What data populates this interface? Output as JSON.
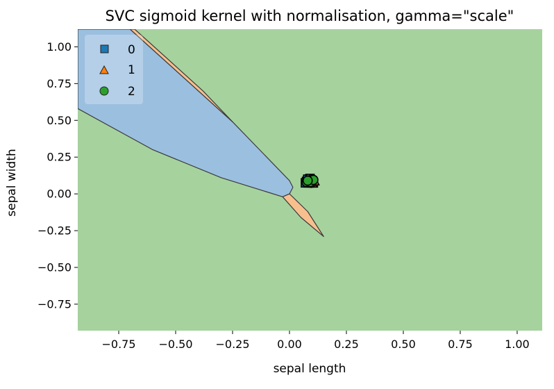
{
  "chart_data": {
    "type": "scatter",
    "title": "SVC sigmoid kernel with normalisation, gamma=\"scale\"",
    "xlabel": "sepal length",
    "ylabel": "sepal width",
    "xlim": [
      -0.93,
      1.11
    ],
    "ylim": [
      -0.93,
      1.12
    ],
    "x_ticks": [
      "−0.75",
      "−0.50",
      "−0.25",
      "0.00",
      "0.25",
      "0.50",
      "0.75",
      "1.00"
    ],
    "x_tick_values": [
      -0.75,
      -0.5,
      -0.25,
      0.0,
      0.25,
      0.5,
      0.75,
      1.0
    ],
    "y_ticks": [
      "1.00",
      "0.75",
      "0.50",
      "0.25",
      "0.00",
      "−0.25",
      "−0.50",
      "−0.75"
    ],
    "y_tick_values": [
      1.0,
      0.75,
      0.5,
      0.25,
      0.0,
      -0.25,
      -0.5,
      -0.75
    ],
    "grid": false,
    "legend_placement": "top-left",
    "colors": {
      "class_0": "#1f77b4",
      "class_1": "#ff7f0e",
      "class_2": "#2ca02c",
      "region_0": "#9bbfdf",
      "region_1": "#f8bf8e",
      "region_2": "#a6d29e",
      "boundary": "#3a3a3a"
    },
    "legend": [
      {
        "label": "0",
        "marker": "square",
        "color": "#1f77b4"
      },
      {
        "label": "1",
        "marker": "triangle",
        "color": "#ff7f0e"
      },
      {
        "label": "2",
        "marker": "circle",
        "color": "#2ca02c"
      }
    ],
    "decision_regions": [
      {
        "class": "0",
        "polygon": [
          [
            -0.93,
            1.12
          ],
          [
            -0.7,
            1.12
          ],
          [
            -0.45,
            0.77
          ],
          [
            -0.25,
            0.49
          ],
          [
            -0.1,
            0.25
          ],
          [
            0.0,
            0.09
          ],
          [
            0.015,
            0.045
          ],
          [
            0.0,
            0.0
          ],
          [
            -0.03,
            -0.02
          ],
          [
            -0.3,
            0.11
          ],
          [
            -0.6,
            0.3
          ],
          [
            -0.93,
            0.58
          ]
        ]
      },
      {
        "class": "1",
        "polygon": [
          [
            -0.7,
            1.12
          ],
          [
            -0.68,
            1.12
          ],
          [
            -0.38,
            0.7
          ],
          [
            -0.25,
            0.49
          ]
        ]
      },
      {
        "class": "1",
        "polygon": [
          [
            -0.03,
            -0.02
          ],
          [
            0.0,
            0.0
          ],
          [
            0.08,
            -0.12
          ],
          [
            0.15,
            -0.29
          ],
          [
            0.05,
            -0.16
          ]
        ]
      }
    ],
    "series": [
      {
        "name": "0",
        "marker": "square",
        "points": [
          [
            0.075,
            0.085
          ],
          [
            0.085,
            0.095
          ],
          [
            0.095,
            0.08
          ],
          [
            0.08,
            0.1
          ],
          [
            0.1,
            0.09
          ],
          [
            0.07,
            0.075
          ],
          [
            0.09,
            0.105
          ],
          [
            0.105,
            0.075
          ]
        ]
      },
      {
        "name": "1",
        "marker": "triangle",
        "points": [
          [
            0.08,
            0.08
          ],
          [
            0.095,
            0.095
          ],
          [
            0.1,
            0.07
          ],
          [
            0.075,
            0.095
          ],
          [
            0.11,
            0.085
          ],
          [
            0.085,
            0.07
          ]
        ]
      },
      {
        "name": "2",
        "marker": "circle",
        "points": [
          [
            0.085,
            0.09
          ],
          [
            0.1,
            0.1
          ],
          [
            0.075,
            0.08
          ],
          [
            0.095,
            0.075
          ],
          [
            0.09,
            0.08
          ],
          [
            0.105,
            0.095
          ],
          [
            0.08,
            0.09
          ]
        ]
      }
    ]
  }
}
